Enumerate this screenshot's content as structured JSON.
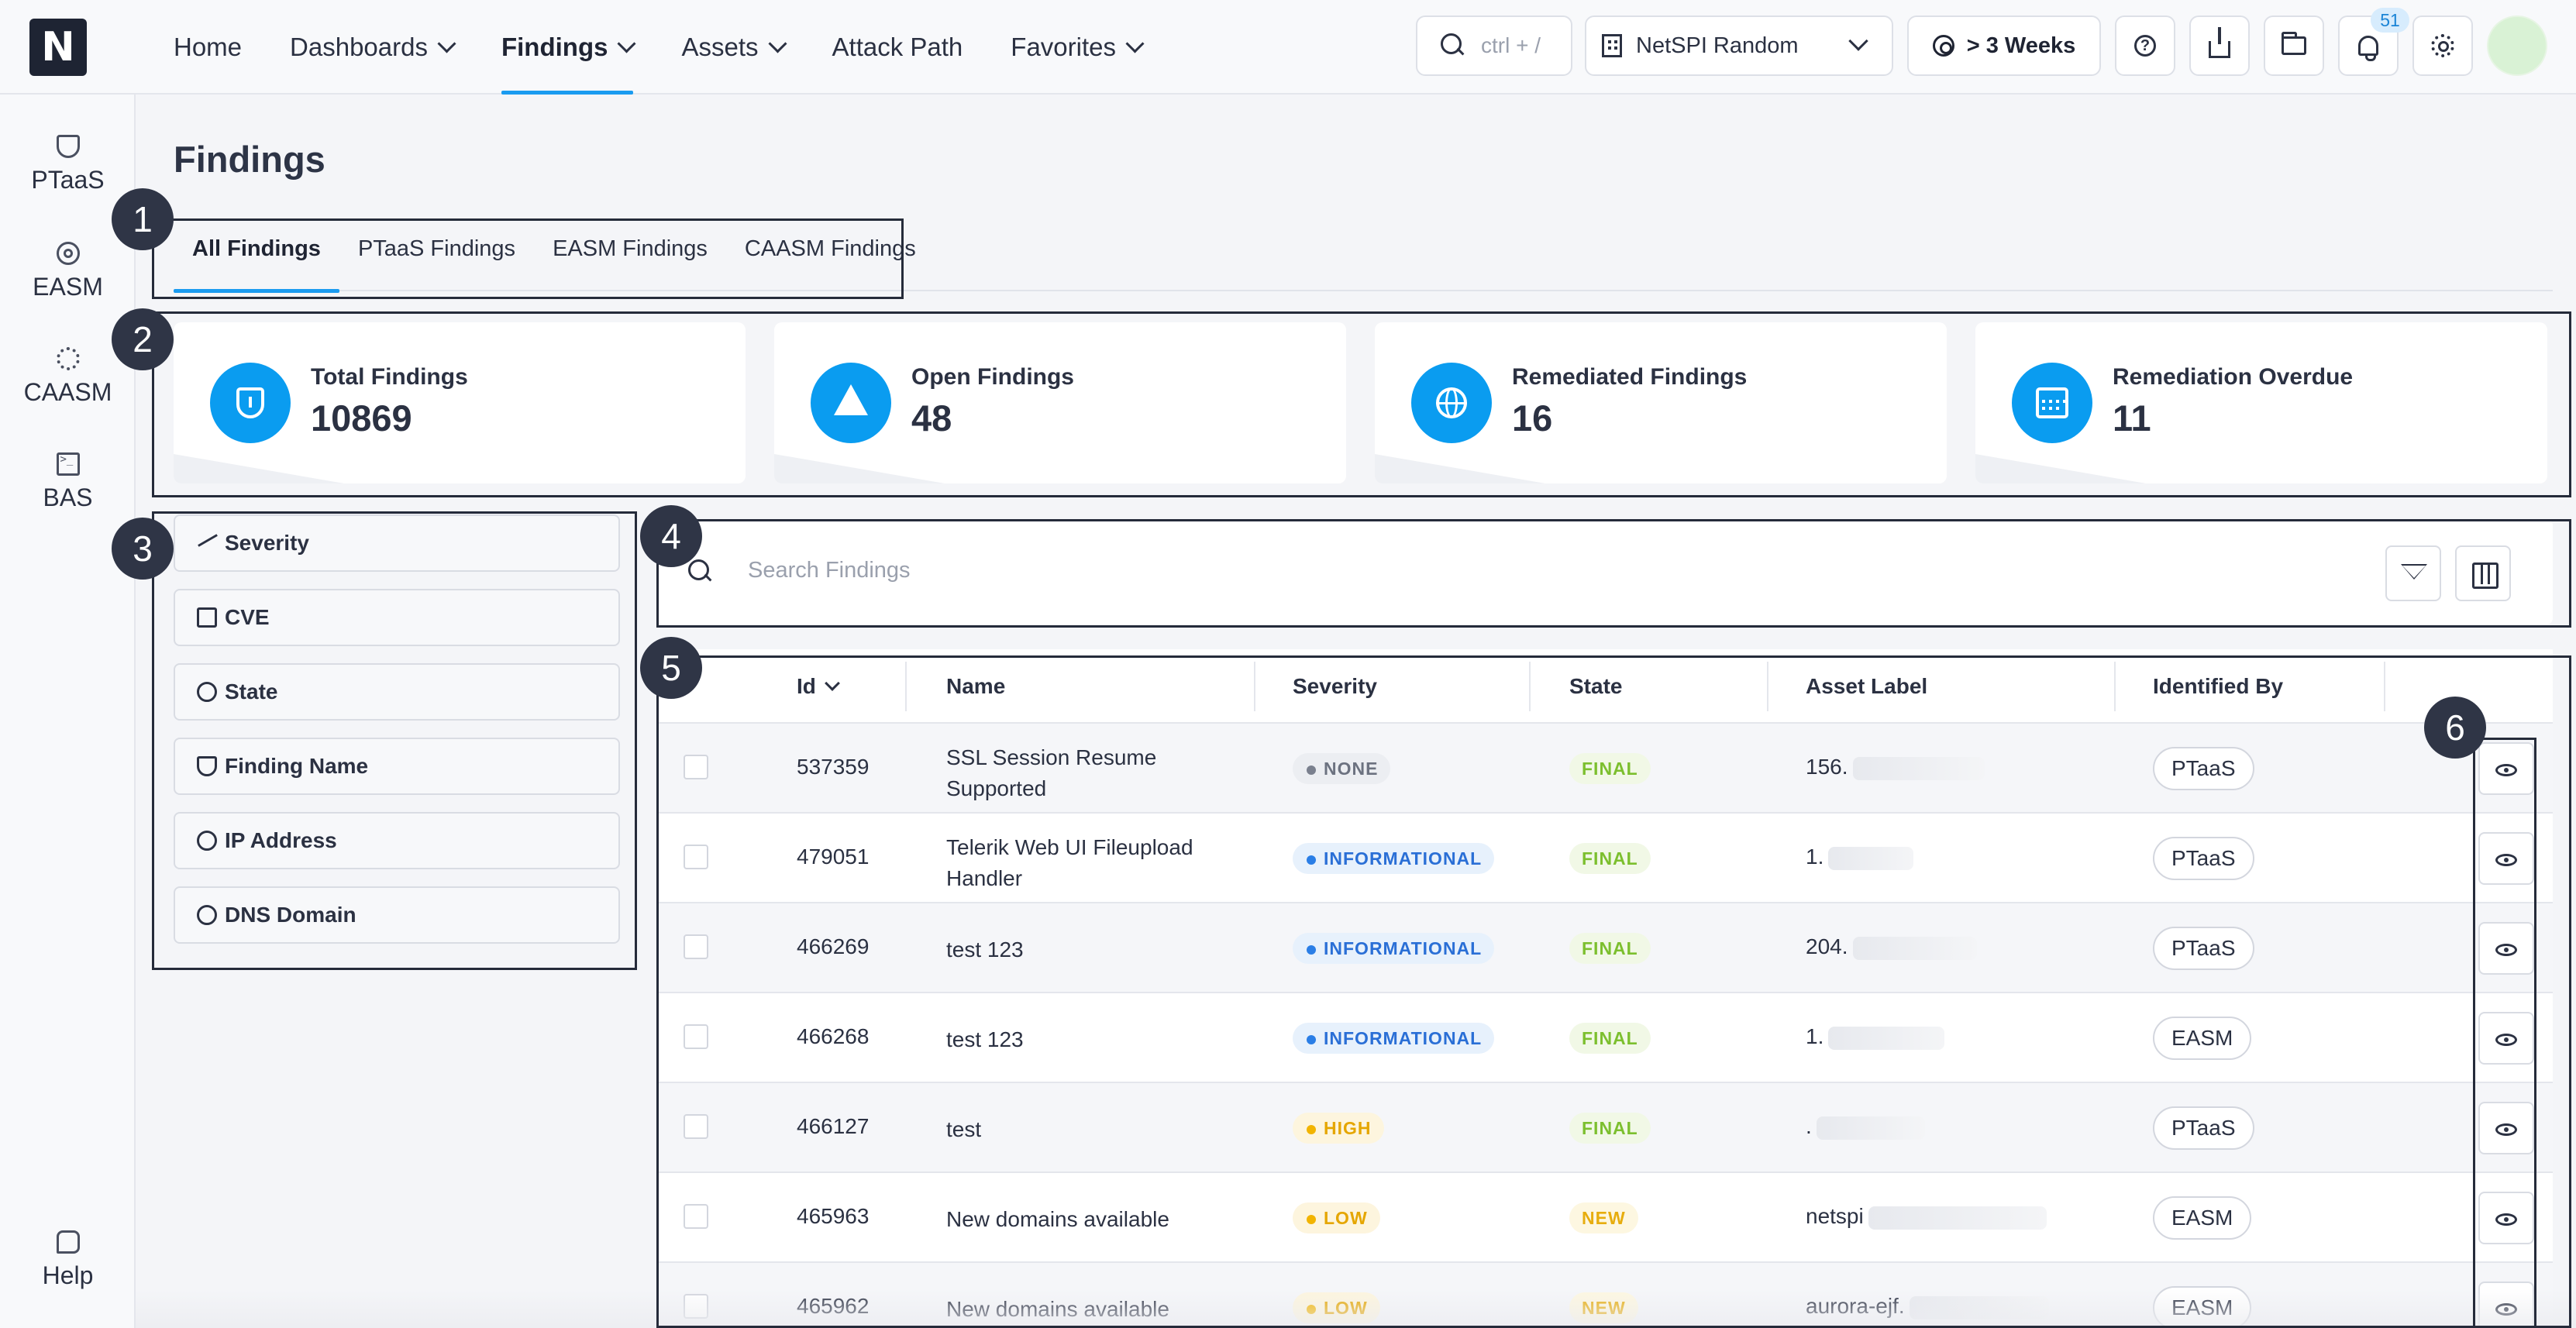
{
  "header": {
    "logo_letter": "N",
    "nav": [
      {
        "label": "Home",
        "dropdown": false,
        "active": false
      },
      {
        "label": "Dashboards",
        "dropdown": true,
        "active": false
      },
      {
        "label": "Findings",
        "dropdown": true,
        "active": true
      },
      {
        "label": "Assets",
        "dropdown": true,
        "active": false
      },
      {
        "label": "Attack Path",
        "dropdown": false,
        "active": false
      },
      {
        "label": "Favorites",
        "dropdown": true,
        "active": false
      }
    ],
    "search_placeholder": "ctrl + /",
    "org_selector": "NetSPI Random",
    "time_filter": "> 3 Weeks",
    "notification_count": "51",
    "icons": [
      "search-icon",
      "building-icon",
      "target-icon",
      "help-icon",
      "download-icon",
      "folder-sync-icon",
      "bell-icon",
      "gear-icon"
    ]
  },
  "sidebar": {
    "items": [
      {
        "label": "PTaaS",
        "icon": "shield-lock-icon"
      },
      {
        "label": "EASM",
        "icon": "radar-icon"
      },
      {
        "label": "CAASM",
        "icon": "gear-network-icon"
      },
      {
        "label": "BAS",
        "icon": "terminal-icon"
      }
    ],
    "help_label": "Help"
  },
  "page": {
    "title": "Findings"
  },
  "tabs": [
    {
      "label": "All Findings",
      "active": true
    },
    {
      "label": "PTaaS Findings",
      "active": false
    },
    {
      "label": "EASM Findings",
      "active": false
    },
    {
      "label": "CAASM Findings",
      "active": false
    }
  ],
  "stats": [
    {
      "label": "Total Findings",
      "value": "10869",
      "icon": "shield-alert-icon"
    },
    {
      "label": "Open Findings",
      "value": "48",
      "icon": "warning-icon"
    },
    {
      "label": "Remediated Findings",
      "value": "16",
      "icon": "globe-icon"
    },
    {
      "label": "Remediation Overdue",
      "value": "11",
      "icon": "calendar-icon"
    }
  ],
  "filters": [
    {
      "label": "Severity",
      "icon": "trend-icon"
    },
    {
      "label": "CVE",
      "icon": "clipboard-icon"
    },
    {
      "label": "State",
      "icon": "check-circle-icon"
    },
    {
      "label": "Finding Name",
      "icon": "shield-icon"
    },
    {
      "label": "IP Address",
      "icon": "network-icon"
    },
    {
      "label": "DNS Domain",
      "icon": "globe-icon"
    }
  ],
  "search": {
    "placeholder": "Search Findings"
  },
  "table": {
    "columns": [
      "Id",
      "Name",
      "Severity",
      "State",
      "Asset Label",
      "Identified By"
    ],
    "rows": [
      {
        "id": "537359",
        "name": "SSL Session Resume Supported",
        "severity": "NONE",
        "state": "FINAL",
        "asset": "156.",
        "identified_by": "PTaaS"
      },
      {
        "id": "479051",
        "name": "Telerik Web UI Fileupload Handler",
        "severity": "INFORMATIONAL",
        "state": "FINAL",
        "asset": "1.",
        "identified_by": "PTaaS"
      },
      {
        "id": "466269",
        "name": "test 123",
        "severity": "INFORMATIONAL",
        "state": "FINAL",
        "asset": "204.",
        "identified_by": "PTaaS"
      },
      {
        "id": "466268",
        "name": "test 123",
        "severity": "INFORMATIONAL",
        "state": "FINAL",
        "asset": "1.",
        "identified_by": "EASM"
      },
      {
        "id": "466127",
        "name": "test",
        "severity": "HIGH",
        "state": "FINAL",
        "asset": ".",
        "identified_by": "PTaaS"
      },
      {
        "id": "465963",
        "name": "New domains available",
        "severity": "LOW",
        "state": "NEW",
        "asset": "netspi",
        "identified_by": "EASM"
      },
      {
        "id": "465962",
        "name": "New domains available",
        "severity": "LOW",
        "state": "NEW",
        "asset": "aurora-ejf.",
        "identified_by": "EASM"
      }
    ]
  },
  "annotations": [
    "1",
    "2",
    "3",
    "4",
    "5",
    "6"
  ],
  "colors": {
    "accent": "#1a9bf0",
    "stat_icon": "#0a9cf0",
    "annotation": "#2f3546"
  }
}
